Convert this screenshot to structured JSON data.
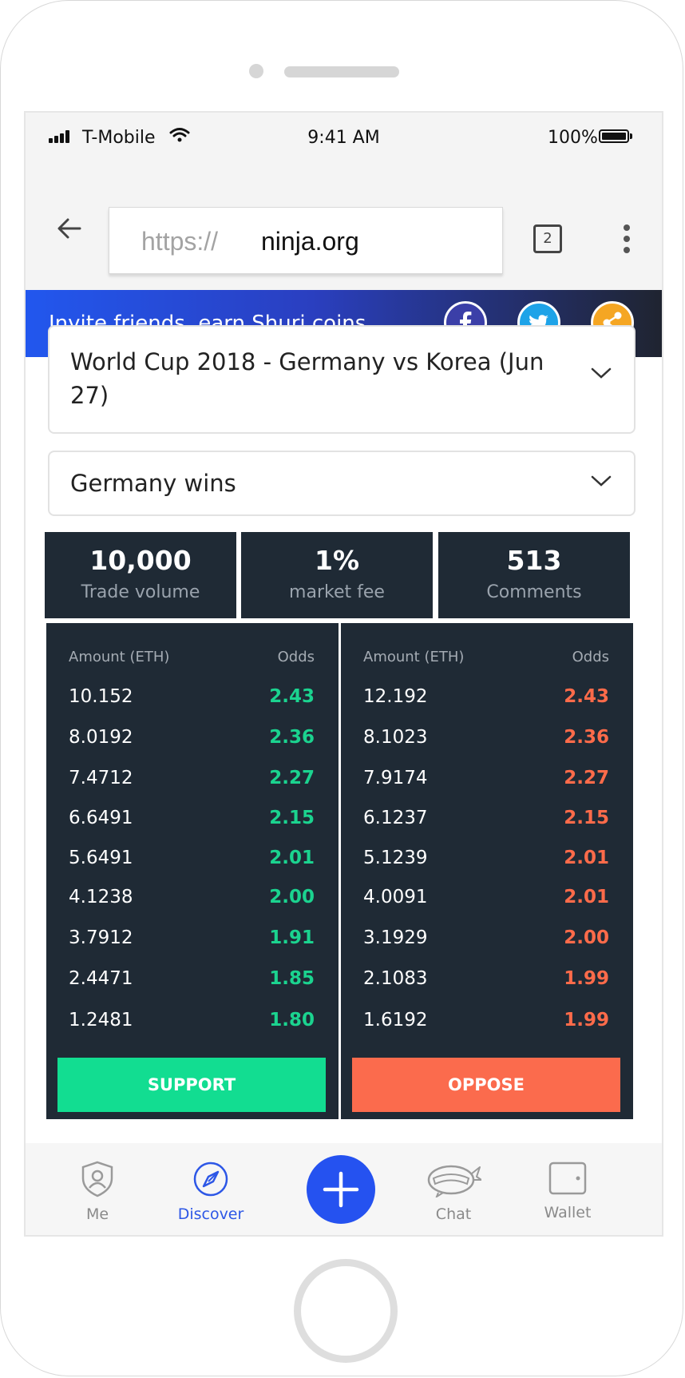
{
  "status_bar": {
    "carrier": "T-Mobile",
    "time": "9:41 AM",
    "battery": "100%"
  },
  "browser": {
    "url_scheme": "https://",
    "url_host": "ninja.org",
    "tab_count": "2"
  },
  "banner": {
    "text": "Invite friends, earn Shuri coins",
    "colors": {
      "facebook": "#3b3fa8",
      "twitter": "#1ea3e8",
      "share": "#f5a623"
    }
  },
  "selects": {
    "event": "World Cup 2018 - Germany vs Korea (Jun 27)",
    "outcome": "Germany wins"
  },
  "stats": [
    {
      "value": "10,000",
      "label": "Trade volume"
    },
    {
      "value": "1%",
      "label": "market fee"
    },
    {
      "value": "513",
      "label": "Comments"
    }
  ],
  "support_book": {
    "header_amount": "Amount (ETH)",
    "header_odds": "Odds",
    "rows": [
      {
        "amount": "10.152",
        "odds": "2.43"
      },
      {
        "amount": "8.0192",
        "odds": "2.36"
      },
      {
        "amount": "7.4712",
        "odds": "2.27"
      },
      {
        "amount": "6.6491",
        "odds": "2.15"
      },
      {
        "amount": "5.6491",
        "odds": "2.01"
      },
      {
        "amount": "4.1238",
        "odds": "2.00"
      },
      {
        "amount": "3.7912",
        "odds": "1.91"
      },
      {
        "amount": "2.4471",
        "odds": "1.85"
      },
      {
        "amount": "1.2481",
        "odds": "1.80"
      }
    ],
    "button": "SUPPORT",
    "accent": "#1bd38f"
  },
  "oppose_book": {
    "header_amount": "Amount (ETH)",
    "header_odds": "Odds",
    "rows": [
      {
        "amount": "12.192",
        "odds": "2.43"
      },
      {
        "amount": "8.1023",
        "odds": "2.36"
      },
      {
        "amount": "7.9174",
        "odds": "2.27"
      },
      {
        "amount": "6.1237",
        "odds": "2.15"
      },
      {
        "amount": "5.1239",
        "odds": "2.01"
      },
      {
        "amount": "4.0091",
        "odds": "2.01"
      },
      {
        "amount": "3.1929",
        "odds": "2.00"
      },
      {
        "amount": "2.1083",
        "odds": "1.99"
      },
      {
        "amount": "1.6192",
        "odds": "1.99"
      }
    ],
    "button": "OPPOSE",
    "accent": "#ff6b4a"
  },
  "nav": {
    "items": [
      {
        "label": "Me",
        "icon": "shield-user-icon"
      },
      {
        "label": "Discover",
        "icon": "compass-icon"
      },
      {
        "label": "",
        "icon": "plus-icon"
      },
      {
        "label": "Chat",
        "icon": "ninja-chat-icon"
      },
      {
        "label": "Wallet",
        "icon": "wallet-icon"
      }
    ],
    "active": "Discover"
  }
}
